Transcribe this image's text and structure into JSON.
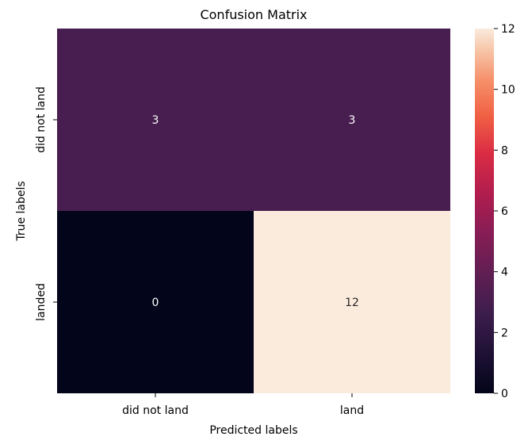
{
  "chart_data": {
    "type": "heatmap",
    "title": "Confusion Matrix",
    "xlabel": "Predicted labels",
    "ylabel": "True labels",
    "x_categories": [
      "did not land",
      "land"
    ],
    "y_categories": [
      "did not land",
      "landed"
    ],
    "values": [
      [
        3,
        3
      ],
      [
        0,
        12
      ]
    ],
    "annotations": [
      "3",
      "3",
      "0",
      "12"
    ],
    "colormap": "rocket",
    "colorbar": {
      "min": 0,
      "max": 12,
      "ticks": [
        0,
        2,
        4,
        6,
        8,
        10,
        12
      ]
    },
    "grid": false
  }
}
